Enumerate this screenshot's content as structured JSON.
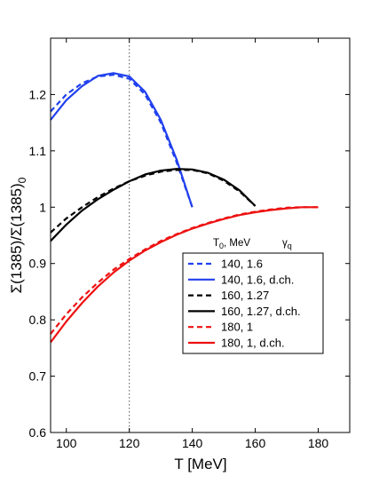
{
  "chart_data": {
    "type": "line",
    "xlabel": "T [MeV]",
    "ylabel": "Σ(1385)/Σ(1385)",
    "ylabel_sub": "0",
    "xlim": [
      95,
      190
    ],
    "ylim": [
      0.6,
      1.3
    ],
    "xticks": [
      100,
      120,
      140,
      160,
      180
    ],
    "yticks": [
      0.6,
      0.7,
      0.8,
      0.9,
      1,
      1.1,
      1.2
    ],
    "reference_line": {
      "x": 120,
      "style": "dotted"
    },
    "legend": {
      "title_left": "T",
      "title_left_sub": "0",
      "title_left_unit": ", MeV",
      "title_right": "γ",
      "title_right_sub": "q",
      "placement": "lower-right"
    },
    "series": [
      {
        "name": "140, 1.6",
        "color": "#2040ee",
        "style": "dashed",
        "x": [
          95,
          100,
          105,
          110,
          115,
          120,
          125,
          130,
          135,
          140
        ],
        "y": [
          1.17,
          1.2,
          1.22,
          1.232,
          1.235,
          1.228,
          1.2,
          1.15,
          1.08,
          1.0
        ]
      },
      {
        "name": "140, 1.6, d.ch.",
        "color": "#2040ee",
        "style": "solid",
        "x": [
          95,
          100,
          105,
          110,
          115,
          120,
          125,
          130,
          135,
          140
        ],
        "y": [
          1.155,
          1.19,
          1.215,
          1.233,
          1.238,
          1.232,
          1.205,
          1.155,
          1.085,
          1.0
        ]
      },
      {
        "name": "160, 1.27",
        "color": "#000000",
        "style": "dashed",
        "x": [
          95,
          100,
          105,
          110,
          115,
          120,
          125,
          130,
          135,
          140,
          145,
          150,
          155,
          160
        ],
        "y": [
          0.955,
          0.98,
          1.0,
          1.018,
          1.033,
          1.046,
          1.056,
          1.063,
          1.066,
          1.066,
          1.06,
          1.047,
          1.028,
          1.002
        ]
      },
      {
        "name": "160, 1.27, d.ch.",
        "color": "#000000",
        "style": "solid",
        "x": [
          95,
          100,
          105,
          110,
          115,
          120,
          125,
          130,
          135,
          140,
          145,
          150,
          155,
          160
        ],
        "y": [
          0.94,
          0.969,
          0.994,
          1.014,
          1.031,
          1.046,
          1.058,
          1.065,
          1.068,
          1.067,
          1.061,
          1.049,
          1.03,
          1.002
        ]
      },
      {
        "name": "180, 1",
        "color": "#ee1111",
        "style": "dashed",
        "x": [
          95,
          100,
          105,
          110,
          115,
          120,
          125,
          130,
          135,
          140,
          145,
          150,
          155,
          160,
          165,
          170,
          175,
          180
        ],
        "y": [
          0.775,
          0.81,
          0.84,
          0.866,
          0.889,
          0.908,
          0.925,
          0.94,
          0.952,
          0.963,
          0.972,
          0.98,
          0.987,
          0.992,
          0.996,
          0.999,
          1.0,
          1.0
        ]
      },
      {
        "name": "180, 1, d.ch.",
        "color": "#ee1111",
        "style": "solid",
        "x": [
          95,
          100,
          105,
          110,
          115,
          120,
          125,
          130,
          135,
          140,
          145,
          150,
          155,
          160,
          165,
          170,
          175,
          180
        ],
        "y": [
          0.76,
          0.797,
          0.83,
          0.859,
          0.884,
          0.905,
          0.923,
          0.938,
          0.951,
          0.962,
          0.971,
          0.979,
          0.986,
          0.991,
          0.995,
          0.998,
          1.0,
          1.0
        ]
      }
    ]
  }
}
